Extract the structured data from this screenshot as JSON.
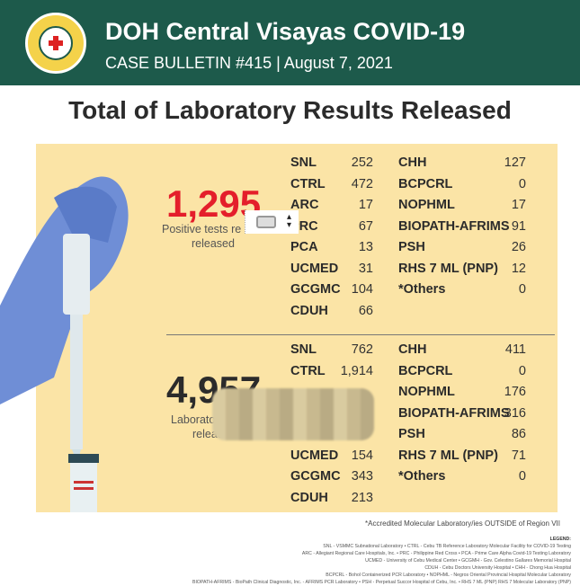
{
  "header": {
    "title": "DOH Central Visayas COVID-19",
    "subtitle": "CASE BULLETIN #415 | August 7, 2021",
    "seal_text": "REPUBLIC OF THE PHILIPPINES DEPARTMENT OF HEALTH"
  },
  "main_title": "Total of Laboratory Results Released",
  "positive": {
    "total": "1,295",
    "caption_line1": "Positive tests re",
    "caption_line2": "released",
    "col1": [
      {
        "name": "SNL",
        "value": "252"
      },
      {
        "name": "CTRL",
        "value": "472"
      },
      {
        "name": "ARC",
        "value": "17"
      },
      {
        "name": "PRC",
        "value": "67"
      },
      {
        "name": "PCA",
        "value": "13"
      },
      {
        "name": "UCMED",
        "value": "31"
      },
      {
        "name": "GCGMC",
        "value": "104"
      },
      {
        "name": "CDUH",
        "value": "66"
      }
    ],
    "col2": [
      {
        "name": "CHH",
        "value": "127"
      },
      {
        "name": "BCPCRL",
        "value": "0"
      },
      {
        "name": "NOPHML",
        "value": "17"
      },
      {
        "name": "BIOPATH-AFRIMS",
        "value": "91"
      },
      {
        "name": "PSH",
        "value": "26"
      },
      {
        "name": "RHS 7 ML (PNP)",
        "value": "12"
      },
      {
        "name": "*Others",
        "value": "0"
      }
    ]
  },
  "laboratory": {
    "total": "4,957",
    "caption_line1": "Laboratory",
    "caption_line2": "releas",
    "col1": [
      {
        "name": "SNL",
        "value": "762"
      },
      {
        "name": "CTRL",
        "value": "1,914"
      },
      {
        "name": "UCMED",
        "value": "154"
      },
      {
        "name": "GCGMC",
        "value": "343"
      },
      {
        "name": "CDUH",
        "value": "213"
      }
    ],
    "col2": [
      {
        "name": "CHH",
        "value": "411"
      },
      {
        "name": "BCPCRL",
        "value": "0"
      },
      {
        "name": "NOPHML",
        "value": "176"
      },
      {
        "name": "BIOPATH-AFRIMS",
        "value": "316"
      },
      {
        "name": "PSH",
        "value": "86"
      },
      {
        "name": "RHS 7 ML (PNP)",
        "value": "71"
      },
      {
        "name": "*Others",
        "value": "0"
      }
    ]
  },
  "note": "*Accredited Molecular Laboratory/ies OUTSIDE of Region VII",
  "legend": {
    "title": "LEGEND:",
    "lines": [
      "SNL - VSMMC Subnational Laboratory • CTRL - Cebu TB Reference Laboratory Molecular Facility for COVID-19 Testing",
      "ARC - Allegiant Regional Care Hospitals, Inc. • PRC - Philippine Red Cross • PCA - Prime Care Alpha Covid-19 Testing Laboratory",
      "UCMED - University of Cebu Medical Center • GCGMH - Gov. Celestino Gallares Memorial Hospital",
      "CDUH - Cebu Doctors University Hospital • CHH - Chong Hua Hospital",
      "BCPCRL - Bohol Containerized PCR Laboratory • NOPHML - Negros Oriental Provincial Hospital Molecular Laboratory",
      "BIOPATH-AFRIMS - BioPath Clinical Diagnostic, Inc. - AFRIMS PCR Laboratory • PSH - Perpetual Succor Hospital of Cebu, Inc. • RHS 7 ML (PNP) RHS 7 Molecular Laboratory (PNP)"
    ]
  }
}
